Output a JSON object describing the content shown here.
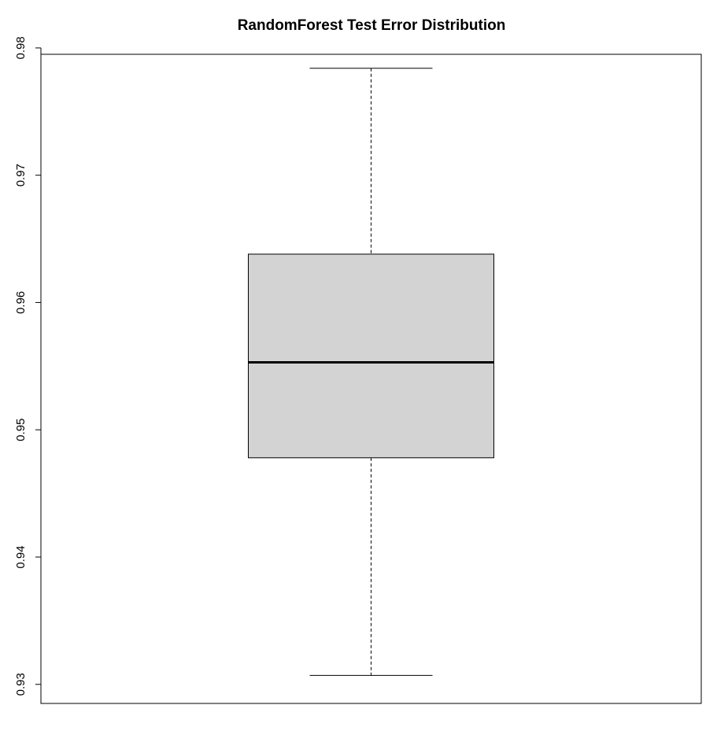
{
  "chart_data": {
    "type": "boxplot",
    "title": "RandomForest Test Error Distribution",
    "xlabel": "",
    "ylabel": "",
    "ylim": [
      0.9285,
      0.9795
    ],
    "y_ticks": [
      0.93,
      0.94,
      0.95,
      0.96,
      0.97,
      0.98
    ],
    "y_tick_labels": [
      "0.93",
      "0.94",
      "0.95",
      "0.96",
      "0.97",
      "0.98"
    ],
    "grid": false,
    "series": [
      {
        "whisker_low": 0.9307,
        "q1": 0.9478,
        "median": 0.9553,
        "q3": 0.9638,
        "whisker_high": 0.9784
      }
    ],
    "colors": {
      "box_fill": "#d3d3d3",
      "stroke": "#000000"
    }
  }
}
